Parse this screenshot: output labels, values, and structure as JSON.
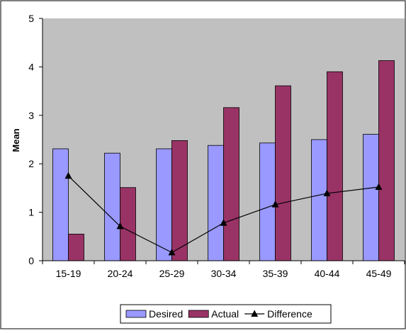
{
  "chart_data": {
    "type": "bar",
    "categories": [
      "15-19",
      "20-24",
      "25-29",
      "30-34",
      "35-39",
      "40-44",
      "45-49"
    ],
    "series": [
      {
        "name": "Desired",
        "type": "bar",
        "color": "#9999FF",
        "values": [
          2.31,
          2.22,
          2.31,
          2.38,
          2.43,
          2.5,
          2.61
        ]
      },
      {
        "name": "Actual",
        "type": "bar",
        "color": "#993366",
        "values": [
          0.55,
          1.51,
          2.48,
          3.16,
          3.61,
          3.9,
          4.13
        ]
      },
      {
        "name": "Difference",
        "type": "line",
        "color": "#000000",
        "marker": "triangle",
        "values": [
          1.75,
          0.71,
          0.17,
          0.78,
          1.16,
          1.39,
          1.52
        ]
      }
    ],
    "yticks": [
      "0",
      "1",
      "2",
      "3",
      "4",
      "5"
    ],
    "xlabel": "",
    "ylabel": "Mean",
    "ylim": [
      0,
      5
    ],
    "grid": false,
    "plot_background": "#C0C0C0",
    "legend_position": "bottom"
  }
}
